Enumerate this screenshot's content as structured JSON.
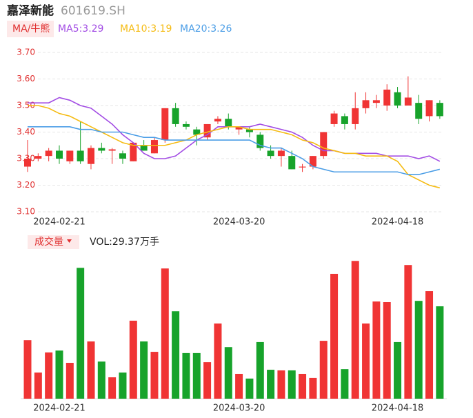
{
  "chart_data": [
    {
      "type": "candlestick",
      "title": "嘉泽新能",
      "subtitle": "601619.SH",
      "legend_title": "MA/牛熊",
      "categories": [
        null,
        null,
        null,
        "2024-02-21",
        null,
        null,
        null,
        null,
        null,
        null,
        null,
        null,
        null,
        null,
        null,
        null,
        null,
        null,
        null,
        null,
        "2024-03-20",
        null,
        null,
        null,
        null,
        null,
        null,
        null,
        null,
        null,
        null,
        null,
        null,
        null,
        null,
        "2024-04-18",
        null,
        null,
        null,
        null
      ],
      "open": [
        3.27,
        3.3,
        3.31,
        3.33,
        3.29,
        3.33,
        3.28,
        3.34,
        3.33,
        3.32,
        3.29,
        3.35,
        3.32,
        3.37,
        3.49,
        3.43,
        3.41,
        3.38,
        3.44,
        3.45,
        3.41,
        3.41,
        3.39,
        3.33,
        3.31,
        3.31,
        3.27,
        3.27,
        3.31,
        3.43,
        3.46,
        3.43,
        3.49,
        3.51,
        3.5,
        3.55,
        3.5,
        3.51,
        3.46,
        3.51
      ],
      "high": [
        3.37,
        3.32,
        3.34,
        3.35,
        3.33,
        3.44,
        3.35,
        3.36,
        3.34,
        3.33,
        3.36,
        3.37,
        3.38,
        3.49,
        3.51,
        3.44,
        3.42,
        3.43,
        3.46,
        3.47,
        3.42,
        3.42,
        3.4,
        3.35,
        3.34,
        3.33,
        3.28,
        3.31,
        3.4,
        3.48,
        3.47,
        3.55,
        3.55,
        3.54,
        3.58,
        3.57,
        3.61,
        3.54,
        3.52,
        3.52
      ],
      "low": [
        3.25,
        3.29,
        3.29,
        3.28,
        3.28,
        3.28,
        3.26,
        3.32,
        3.28,
        3.28,
        3.29,
        3.33,
        3.32,
        3.36,
        3.42,
        3.41,
        3.35,
        3.37,
        3.43,
        3.41,
        3.39,
        3.38,
        3.33,
        3.3,
        3.27,
        3.26,
        3.25,
        3.26,
        3.3,
        3.42,
        3.41,
        3.41,
        3.47,
        3.49,
        3.48,
        3.49,
        3.5,
        3.43,
        3.44,
        3.45
      ],
      "close": [
        3.3,
        3.31,
        3.33,
        3.3,
        3.33,
        3.29,
        3.34,
        3.33,
        3.335,
        3.3,
        3.36,
        3.33,
        3.37,
        3.49,
        3.43,
        3.42,
        3.39,
        3.43,
        3.45,
        3.42,
        3.42,
        3.4,
        3.34,
        3.31,
        3.33,
        3.26,
        3.27,
        3.31,
        3.4,
        3.47,
        3.43,
        3.49,
        3.52,
        3.52,
        3.56,
        3.5,
        3.53,
        3.45,
        3.52,
        3.46
      ],
      "up_color": "#f03434",
      "down_color": "#17a32b",
      "series": [
        {
          "name": "MA5:3.29",
          "color": "#a24ce4",
          "values": [
            3.51,
            3.51,
            3.51,
            3.53,
            3.52,
            3.5,
            3.49,
            3.46,
            3.43,
            3.39,
            3.36,
            3.32,
            3.3,
            3.3,
            3.31,
            3.34,
            3.37,
            3.39,
            3.42,
            3.42,
            3.42,
            3.42,
            3.43,
            3.42,
            3.41,
            3.4,
            3.38,
            3.35,
            3.33,
            3.33,
            3.32,
            3.32,
            3.32,
            3.32,
            3.31,
            3.31,
            3.31,
            3.3,
            3.31,
            3.29
          ]
        },
        {
          "name": "MA10:3.19",
          "color": "#f5bb12",
          "values": [
            3.5,
            3.5,
            3.49,
            3.47,
            3.46,
            3.44,
            3.42,
            3.4,
            3.38,
            3.36,
            3.35,
            3.35,
            3.35,
            3.35,
            3.36,
            3.37,
            3.39,
            3.4,
            3.41,
            3.42,
            3.42,
            3.41,
            3.41,
            3.41,
            3.4,
            3.39,
            3.37,
            3.36,
            3.34,
            3.33,
            3.32,
            3.32,
            3.31,
            3.31,
            3.31,
            3.29,
            3.24,
            3.22,
            3.2,
            3.19
          ]
        },
        {
          "name": "MA20:3.26",
          "color": "#4a9de6",
          "values": [
            3.42,
            3.42,
            3.42,
            3.42,
            3.42,
            3.41,
            3.41,
            3.4,
            3.4,
            3.4,
            3.39,
            3.38,
            3.38,
            3.37,
            3.37,
            3.37,
            3.37,
            3.37,
            3.37,
            3.37,
            3.37,
            3.37,
            3.35,
            3.34,
            3.34,
            3.32,
            3.3,
            3.27,
            3.26,
            3.25,
            3.25,
            3.25,
            3.25,
            3.25,
            3.25,
            3.25,
            3.24,
            3.24,
            3.25,
            3.26
          ]
        }
      ],
      "ylim": [
        3.1,
        3.7
      ],
      "yticks": [
        {
          "value": 3.1,
          "label": "3.10"
        },
        {
          "value": 3.2,
          "label": "3.20"
        },
        {
          "value": 3.3,
          "label": "3.30"
        },
        {
          "value": 3.4,
          "label": "3.40"
        },
        {
          "value": 3.5,
          "label": "3.50"
        },
        {
          "value": 3.6,
          "label": "3.60"
        },
        {
          "value": 3.7,
          "label": "3.70"
        }
      ],
      "grid": true
    },
    {
      "type": "bar",
      "title": "成交量",
      "annotation": "VOL:29.37万手",
      "categories": [
        null,
        null,
        null,
        "2024-02-21",
        null,
        null,
        null,
        null,
        null,
        null,
        null,
        null,
        null,
        null,
        null,
        null,
        null,
        null,
        null,
        null,
        "2024-03-20",
        null,
        null,
        null,
        null,
        null,
        null,
        null,
        null,
        null,
        null,
        null,
        null,
        null,
        null,
        "2024-04-18",
        null,
        null,
        null,
        null
      ],
      "values": [
        18.6,
        8.3,
        14.7,
        15.3,
        11.4,
        41.6,
        18.2,
        11.8,
        6.8,
        8.3,
        24.8,
        18.2,
        14.9,
        41.4,
        27.8,
        14.5,
        14.5,
        11.6,
        23.9,
        16.4,
        7.9,
        6.4,
        18.0,
        9.2,
        9.0,
        9.0,
        7.9,
        6.6,
        18.4,
        39.7,
        9.4,
        43.8,
        23.9,
        30.9,
        30.7,
        18.0,
        42.5,
        31.1,
        34.2,
        29.37
      ]
    }
  ]
}
